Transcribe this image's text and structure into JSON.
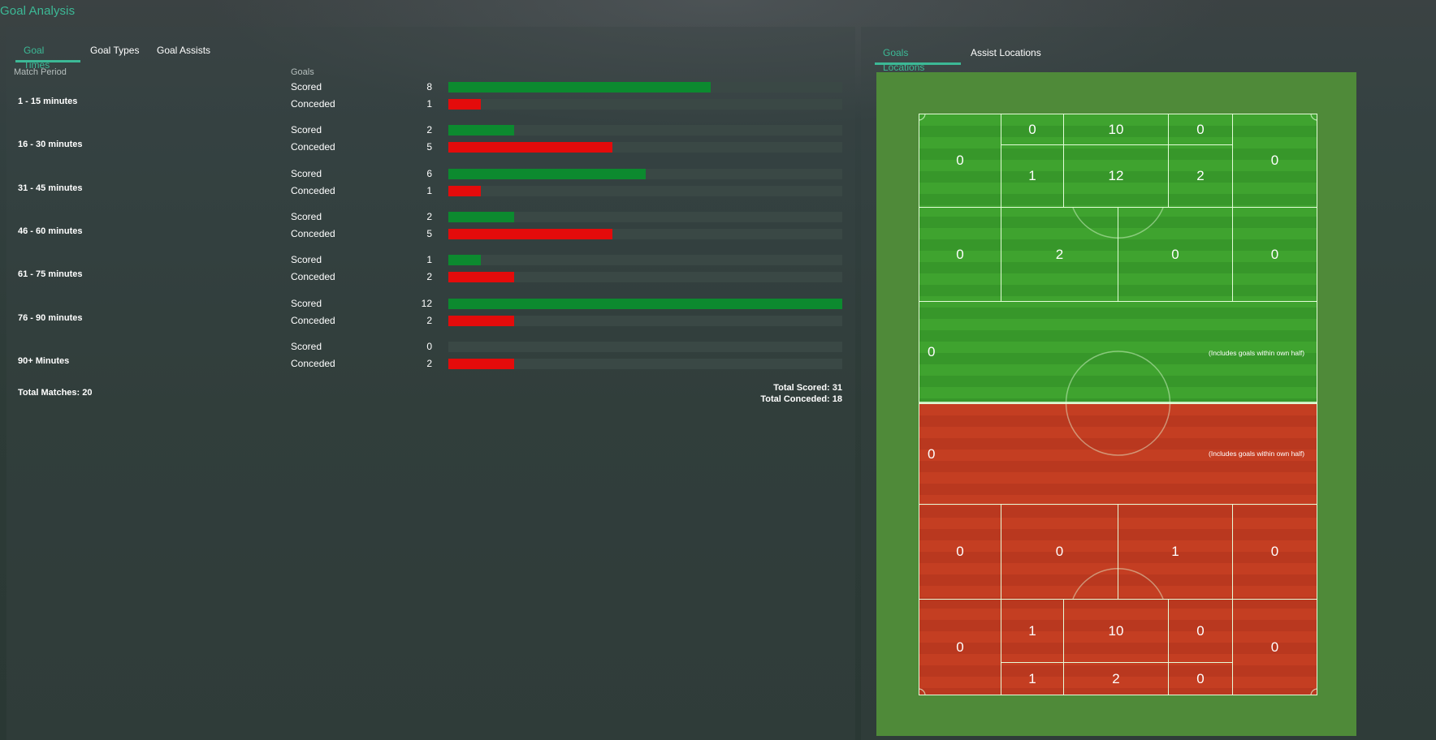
{
  "page": {
    "title": "Goal Analysis"
  },
  "left_tabs": [
    {
      "label": "Goal Times",
      "active": true
    },
    {
      "label": "Goal Types",
      "active": false
    },
    {
      "label": "Goal Assists",
      "active": false
    }
  ],
  "right_tabs": [
    {
      "label": "Goals Locations",
      "active": true
    },
    {
      "label": "Assist Locations",
      "active": false
    }
  ],
  "table": {
    "headers": {
      "period": "Match Period",
      "goals": "Goals"
    },
    "max_value": 12,
    "colors": {
      "scored": "#0c8a2f",
      "conceded": "#e40b0b",
      "track": "#3a4845"
    },
    "periods": [
      {
        "label": "1 - 15 minutes",
        "scored": 8,
        "conceded": 1
      },
      {
        "label": "16 - 30 minutes",
        "scored": 2,
        "conceded": 5
      },
      {
        "label": "31 - 45 minutes",
        "scored": 6,
        "conceded": 1
      },
      {
        "label": "46 - 60 minutes",
        "scored": 2,
        "conceded": 5
      },
      {
        "label": "61 - 75 minutes",
        "scored": 1,
        "conceded": 2
      },
      {
        "label": "76 - 90 minutes",
        "scored": 12,
        "conceded": 2
      },
      {
        "label": "90+ Minutes",
        "scored": 0,
        "conceded": 2
      }
    ],
    "scored_label": "Scored",
    "conceded_label": "Conceded"
  },
  "totals": {
    "matches": "Total Matches: 20",
    "scored": "Total Scored: 31",
    "conceded": "Total Conceded: 18"
  },
  "pitch": {
    "attack": {
      "six_yard": [
        "0",
        "10",
        "0"
      ],
      "box_inner": [
        "1",
        "12",
        "2"
      ],
      "box_wide": [
        "0",
        "0"
      ],
      "edge": [
        "0",
        "2",
        "0",
        "0"
      ],
      "half": "0",
      "half_note": "(Includes goals within own half)"
    },
    "defence": {
      "half": "0",
      "half_note": "(Includes goals within own half)",
      "edge": [
        "0",
        "0",
        "1",
        "0"
      ],
      "box_inner": [
        "1",
        "10",
        "0"
      ],
      "six_yard": [
        "1",
        "2",
        "0"
      ],
      "box_wide": [
        "0",
        "0"
      ]
    }
  }
}
